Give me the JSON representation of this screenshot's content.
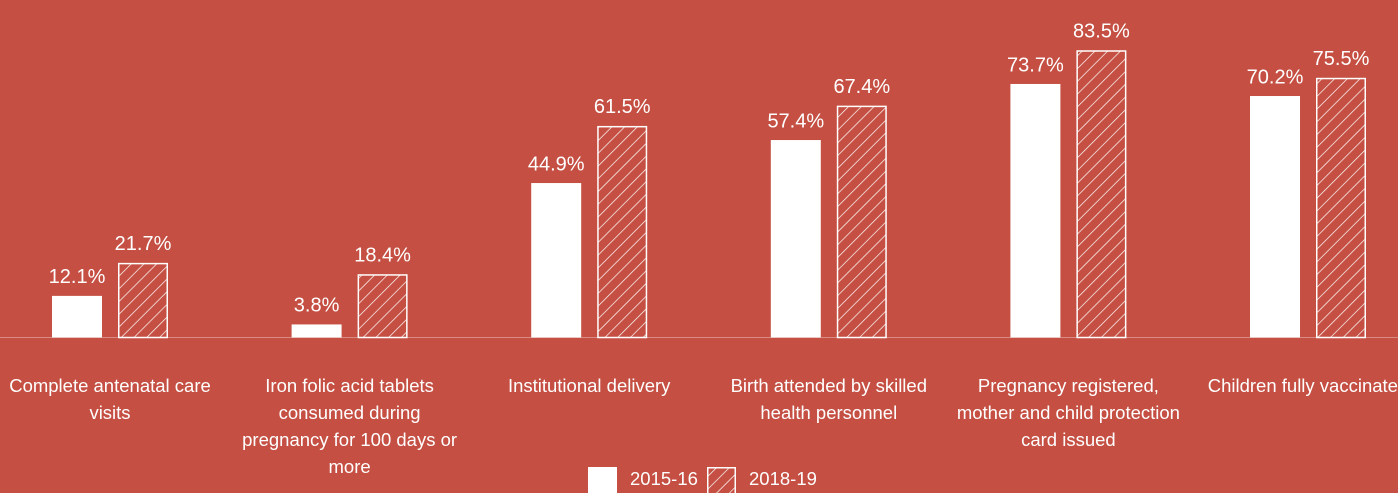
{
  "chart_data": {
    "type": "bar",
    "categories": [
      "Complete antenatal care visits",
      "Iron folic acid tablets consumed during pregnancy for 100 days or more",
      "Institutional delivery",
      "Birth attended by skilled health personnel",
      "Pregnancy registered, mother and child protection card issued",
      "Children fully vaccinated"
    ],
    "series": [
      {
        "name": "2015-16",
        "color": "#ffffff",
        "hatch": false,
        "values": [
          12.1,
          3.8,
          44.9,
          57.4,
          73.7,
          70.2
        ],
        "value_labels": [
          "12.1%",
          "3.8%",
          "44.9%",
          "57.4%",
          "73.7%",
          "70.2%"
        ]
      },
      {
        "name": "2018-19",
        "color": "#ffffff",
        "hatch": true,
        "values": [
          21.7,
          18.4,
          61.5,
          67.4,
          83.5,
          75.5
        ],
        "value_labels": [
          "21.7%",
          "18.4%",
          "61.5%",
          "67.4%",
          "83.5%",
          "75.5%"
        ]
      }
    ],
    "ylim": [
      0,
      100
    ],
    "background": "#c44f42"
  }
}
